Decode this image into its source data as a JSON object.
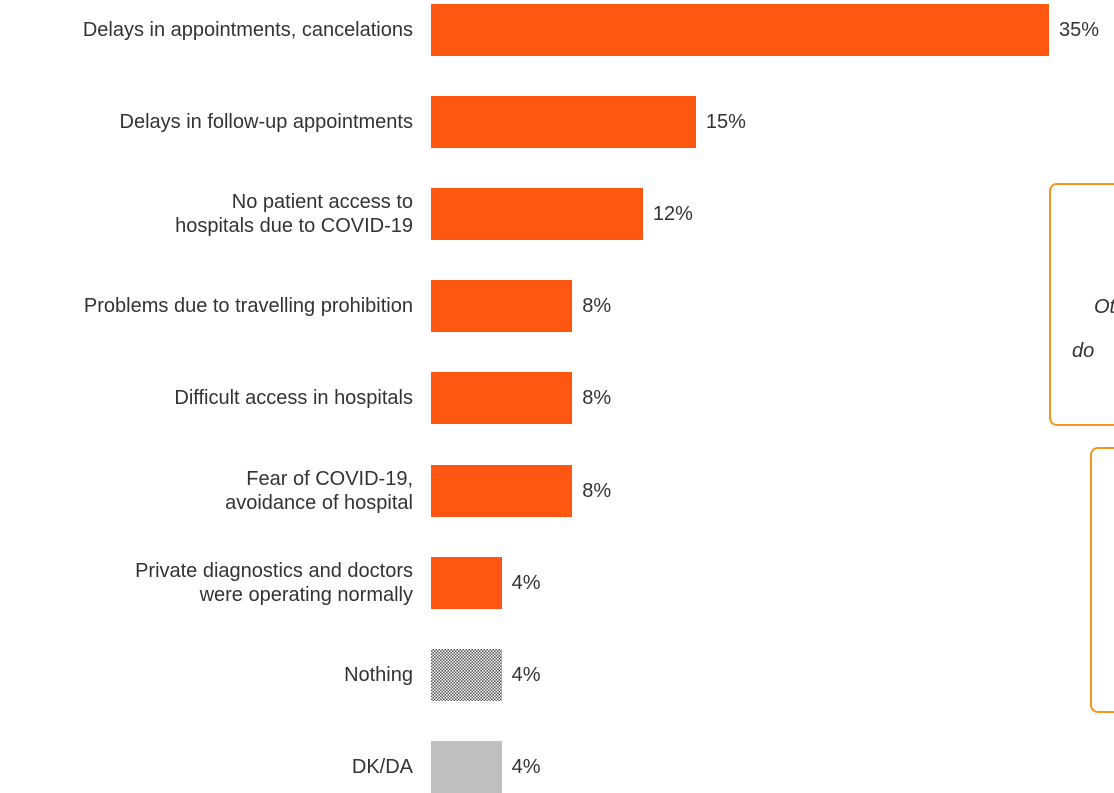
{
  "chart_data": {
    "type": "bar",
    "orientation": "horizontal",
    "categories": [
      "Delays in appointments, cancelations",
      "Delays in follow-up appointments",
      "No patient access to\nhospitals due to COVID-19",
      "Problems due to travelling prohibition",
      "Difficult access in hospitals",
      "Fear of  COVID-19,\navoidance of hospital",
      "Private diagnostics and doctors\nwere operating normally",
      "Nothing",
      "DK/DA"
    ],
    "values": [
      35,
      15,
      12,
      8,
      8,
      8,
      4,
      4,
      4
    ],
    "value_labels": [
      "35%",
      "15%",
      "12%",
      "8%",
      "8%",
      "8%",
      "4%",
      "4%",
      "4%"
    ],
    "colors": [
      "#ff5711",
      "#ff5711",
      "#ff5711",
      "#ff5711",
      "#ff5711",
      "#ff5711",
      "#ff5711",
      "#555555",
      "#bfbfbf"
    ],
    "hatched": [
      false,
      false,
      false,
      false,
      false,
      false,
      false,
      true,
      false
    ],
    "xlim": [
      0,
      35
    ],
    "annotations": [
      "Ot",
      "do"
    ]
  }
}
